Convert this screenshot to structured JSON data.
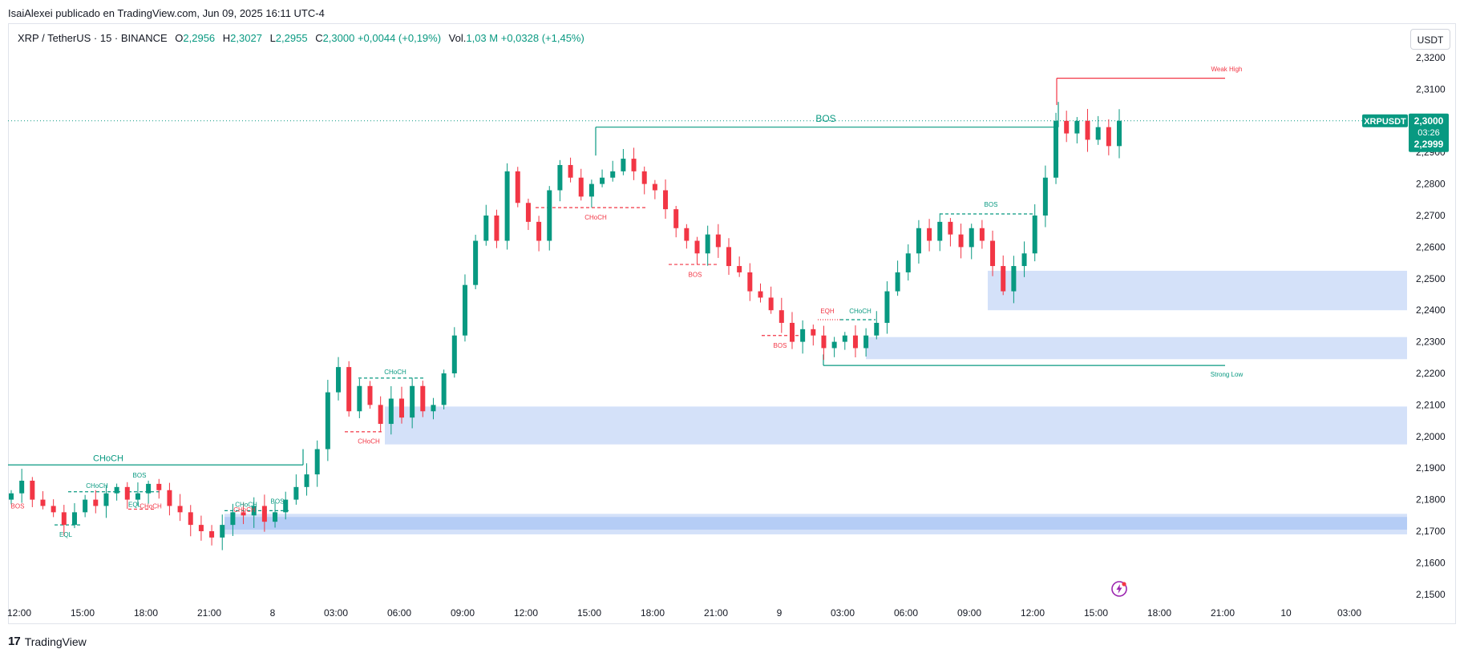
{
  "header": {
    "published": "IsaiAlexei publicado en TradingView.com, Jun 09, 2025 16:11 UTC-4"
  },
  "legend": {
    "symbol": "XRP / TetherUS · 15 · BINANCE",
    "o_label": "O",
    "o_value": "2,2956",
    "h_label": "H",
    "h_value": "2,3027",
    "l_label": "L",
    "l_value": "2,2955",
    "c_label": "C",
    "c_value": "2,3000",
    "change": "+0,0044 (+0,19%)",
    "vol_label": "Vol.",
    "vol_value": "1,03 M",
    "vol_change": "+0,0328 (+1,45%)"
  },
  "price_scale": {
    "currency": "USDT",
    "ticks": [
      "2,3200",
      "2,3100",
      "2,3000",
      "2,2900",
      "2,2800",
      "2,2700",
      "2,2600",
      "2,2500",
      "2,2400",
      "2,2300",
      "2,2200",
      "2,2100",
      "2,2000",
      "2,1900",
      "2,1800",
      "2,1700",
      "2,1600",
      "2,1500"
    ],
    "ticker_label": "XRPUSDT",
    "last_price": "2,3000",
    "countdown": "03:26",
    "bid_price": "2,2999"
  },
  "time_scale": {
    "ticks": [
      "12:00",
      "15:00",
      "18:00",
      "21:00",
      "8",
      "03:00",
      "06:00",
      "09:00",
      "12:00",
      "15:00",
      "18:00",
      "21:00",
      "9",
      "03:00",
      "06:00",
      "09:00",
      "12:00",
      "15:00",
      "18:00",
      "21:00",
      "10",
      "03:00"
    ]
  },
  "colors": {
    "up": "#089981",
    "down": "#f23645",
    "zone": "#cddcf8",
    "zone_strong": "#a8c4f5",
    "label_bg": "#089981",
    "grid": "#f0f3fa"
  },
  "chart_data": {
    "type": "candlestick",
    "symbol": "XRP / TetherUS",
    "interval": "15",
    "exchange": "BINANCE",
    "ylim": [
      2.145,
      2.325
    ],
    "x_ticks": [
      "12:00",
      "15:00",
      "18:00",
      "21:00",
      "8",
      "03:00",
      "06:00",
      "09:00",
      "12:00",
      "15:00",
      "18:00",
      "21:00",
      "9",
      "03:00",
      "06:00",
      "09:00",
      "12:00",
      "15:00",
      "18:00",
      "21:00",
      "10",
      "03:00"
    ],
    "current_price": 2.3,
    "annotations": [
      {
        "text": "BOS",
        "color": "up",
        "price": 2.298
      },
      {
        "text": "Weak High",
        "color": "down",
        "price": 2.314
      },
      {
        "text": "Strong Low",
        "color": "up",
        "price": 2.222
      },
      {
        "text": "CHoCH",
        "color": "up",
        "price": 2.1915
      },
      {
        "text": "CHoCH",
        "color": "down",
        "price": 2.272
      },
      {
        "text": "CHoCH",
        "color": "up",
        "price": 2.2185
      },
      {
        "text": "CHoCH",
        "color": "down",
        "price": 2.202
      },
      {
        "text": "BOS",
        "color": "down",
        "price": 2.254
      },
      {
        "text": "BOS",
        "color": "down",
        "price": 2.232
      },
      {
        "text": "EQH",
        "color": "down",
        "price": 2.237
      },
      {
        "text": "CHoCH",
        "color": "up",
        "price": 2.237
      },
      {
        "text": "BOS",
        "color": "up",
        "price": 2.27
      },
      {
        "text": "BOS",
        "color": "up",
        "price": 2.1855
      },
      {
        "text": "CHoCH",
        "color": "up",
        "price": 2.184
      },
      {
        "text": "BOS",
        "color": "down",
        "price": 2.178
      },
      {
        "text": "EQL",
        "color": "up",
        "price": 2.174
      },
      {
        "text": "EQL",
        "color": "up",
        "price": 2.178
      },
      {
        "text": "CHoCH",
        "color": "down",
        "price": 2.178
      },
      {
        "text": "CHoCH",
        "color": "up",
        "price": 2.1775
      },
      {
        "text": "CHoCH",
        "color": "down",
        "price": 2.177
      },
      {
        "text": "BOS",
        "color": "up",
        "price": 2.177
      }
    ],
    "zones": [
      {
        "top": 2.2525,
        "bottom": 2.24
      },
      {
        "top": 2.2315,
        "bottom": 2.2245
      },
      {
        "top": 2.2095,
        "bottom": 2.1975
      },
      {
        "top": 2.1755,
        "bottom": 2.169
      }
    ],
    "path": [
      2.182,
      2.186,
      2.18,
      2.178,
      2.176,
      2.172,
      2.176,
      2.18,
      2.178,
      2.182,
      2.184,
      2.18,
      2.182,
      2.185,
      2.183,
      2.178,
      2.176,
      2.172,
      2.17,
      2.168,
      2.172,
      2.176,
      2.175,
      2.178,
      2.173,
      2.176,
      2.18,
      2.184,
      2.188,
      2.196,
      2.214,
      2.222,
      2.208,
      2.216,
      2.21,
      2.204,
      2.212,
      2.206,
      2.216,
      2.208,
      2.21,
      2.22,
      2.232,
      2.248,
      2.262,
      2.27,
      2.262,
      2.284,
      2.274,
      2.268,
      2.262,
      2.278,
      2.286,
      2.282,
      2.276,
      2.28,
      2.282,
      2.284,
      2.288,
      2.284,
      2.28,
      2.278,
      2.272,
      2.266,
      2.262,
      2.258,
      2.264,
      2.26,
      2.254,
      2.252,
      2.246,
      2.244,
      2.24,
      2.236,
      2.23,
      2.234,
      2.232,
      2.228,
      2.23,
      2.232,
      2.228,
      2.232,
      2.236,
      2.246,
      2.252,
      2.258,
      2.266,
      2.262,
      2.268,
      2.264,
      2.26,
      2.266,
      2.262,
      2.254,
      2.246,
      2.254,
      2.258,
      2.27,
      2.282,
      2.3,
      2.296,
      2.3,
      2.294,
      2.298,
      2.292,
      2.3
    ]
  },
  "footer": {
    "brand": "TradingView"
  }
}
